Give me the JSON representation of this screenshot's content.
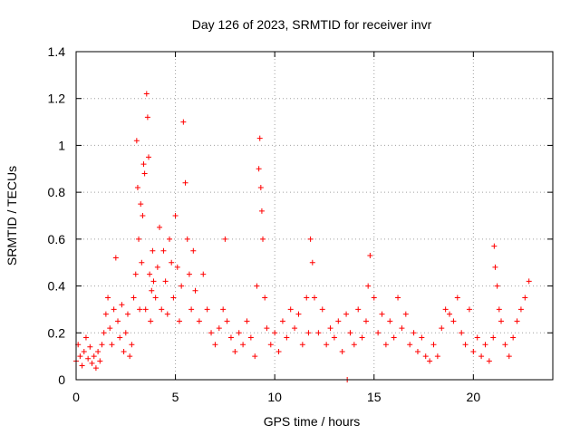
{
  "chart_data": {
    "type": "scatter",
    "title": "Day 126 of 2023, SRMTID for receiver invr",
    "xlabel": "GPS time / hours",
    "ylabel": "SRMTID / TECUs",
    "xlim": [
      0,
      24
    ],
    "ylim": [
      0,
      1.4
    ],
    "xticks": [
      0,
      5,
      10,
      15,
      20
    ],
    "xtick_labels": [
      "0",
      "5",
      "10",
      "15",
      "20"
    ],
    "yticks": [
      0,
      0.2,
      0.4,
      0.6,
      0.8,
      1.0,
      1.2,
      1.4
    ],
    "ytick_labels": [
      "0",
      "0.2",
      "0.4",
      "0.6",
      "0.8",
      "1",
      "1.2",
      "1.4"
    ],
    "grid": true,
    "marker": "plus",
    "color": "#ff0000",
    "series": [
      {
        "name": "SRMTID",
        "x": [
          0.0,
          0.1,
          0.2,
          0.3,
          0.4,
          0.5,
          0.6,
          0.7,
          0.8,
          0.9,
          1.0,
          1.1,
          1.2,
          1.3,
          1.4,
          1.5,
          1.6,
          1.7,
          1.8,
          1.9,
          2.0,
          2.1,
          2.2,
          2.3,
          2.4,
          2.5,
          2.6,
          2.7,
          2.8,
          2.9,
          3.0,
          3.05,
          3.1,
          3.15,
          3.2,
          3.25,
          3.3,
          3.35,
          3.4,
          3.45,
          3.5,
          3.55,
          3.6,
          3.65,
          3.7,
          3.75,
          3.8,
          3.85,
          3.9,
          4.0,
          4.1,
          4.2,
          4.3,
          4.4,
          4.5,
          4.6,
          4.7,
          4.8,
          4.9,
          5.0,
          5.1,
          5.2,
          5.3,
          5.4,
          5.5,
          5.6,
          5.7,
          5.8,
          5.9,
          6.0,
          6.2,
          6.4,
          6.6,
          6.8,
          7.0,
          7.2,
          7.4,
          7.5,
          7.6,
          7.8,
          8.0,
          8.2,
          8.4,
          8.6,
          8.8,
          9.0,
          9.1,
          9.2,
          9.25,
          9.3,
          9.35,
          9.4,
          9.5,
          9.6,
          9.8,
          10.0,
          10.2,
          10.4,
          10.6,
          10.8,
          11.0,
          11.2,
          11.4,
          11.6,
          11.7,
          11.8,
          11.9,
          12.0,
          12.2,
          12.4,
          12.6,
          12.8,
          13.0,
          13.2,
          13.4,
          13.6,
          13.65,
          13.8,
          14.0,
          14.2,
          14.4,
          14.6,
          14.7,
          14.8,
          15.0,
          15.2,
          15.4,
          15.6,
          15.8,
          16.0,
          16.2,
          16.4,
          16.6,
          16.8,
          17.0,
          17.2,
          17.4,
          17.6,
          17.8,
          18.0,
          18.2,
          18.4,
          18.6,
          18.8,
          19.0,
          19.2,
          19.4,
          19.6,
          19.8,
          20.0,
          20.2,
          20.4,
          20.6,
          20.8,
          21.0,
          21.05,
          21.1,
          21.2,
          21.3,
          21.4,
          21.6,
          21.8,
          22.0,
          22.2,
          22.4,
          22.6,
          22.8
        ],
        "y": [
          0.08,
          0.15,
          0.1,
          0.06,
          0.12,
          0.18,
          0.09,
          0.14,
          0.07,
          0.1,
          0.05,
          0.12,
          0.08,
          0.15,
          0.2,
          0.28,
          0.35,
          0.22,
          0.15,
          0.3,
          0.52,
          0.25,
          0.18,
          0.32,
          0.12,
          0.2,
          0.28,
          0.1,
          0.15,
          0.35,
          0.45,
          1.02,
          0.82,
          0.6,
          0.3,
          0.75,
          0.5,
          0.7,
          0.92,
          0.88,
          0.3,
          1.22,
          1.12,
          0.95,
          0.45,
          0.25,
          0.38,
          0.55,
          0.42,
          0.35,
          0.48,
          0.65,
          0.3,
          0.55,
          0.42,
          0.28,
          0.6,
          0.5,
          0.35,
          0.7,
          0.48,
          0.25,
          0.4,
          1.1,
          0.84,
          0.6,
          0.45,
          0.3,
          0.55,
          0.38,
          0.25,
          0.45,
          0.3,
          0.2,
          0.15,
          0.22,
          0.3,
          0.6,
          0.25,
          0.18,
          0.12,
          0.2,
          0.15,
          0.25,
          0.18,
          0.1,
          0.4,
          0.9,
          1.03,
          0.82,
          0.72,
          0.6,
          0.35,
          0.22,
          0.15,
          0.2,
          0.12,
          0.25,
          0.18,
          0.3,
          0.22,
          0.28,
          0.15,
          0.35,
          0.2,
          0.6,
          0.5,
          0.35,
          0.2,
          0.3,
          0.15,
          0.22,
          0.18,
          0.25,
          0.12,
          0.28,
          0.0,
          0.2,
          0.15,
          0.3,
          0.18,
          0.25,
          0.4,
          0.53,
          0.35,
          0.2,
          0.28,
          0.15,
          0.25,
          0.18,
          0.35,
          0.22,
          0.28,
          0.15,
          0.2,
          0.12,
          0.18,
          0.1,
          0.08,
          0.15,
          0.1,
          0.22,
          0.3,
          0.28,
          0.25,
          0.35,
          0.2,
          0.15,
          0.3,
          0.12,
          0.18,
          0.1,
          0.15,
          0.08,
          0.18,
          0.57,
          0.48,
          0.4,
          0.3,
          0.25,
          0.15,
          0.1,
          0.18,
          0.25,
          0.3,
          0.35,
          0.42
        ]
      }
    ]
  }
}
